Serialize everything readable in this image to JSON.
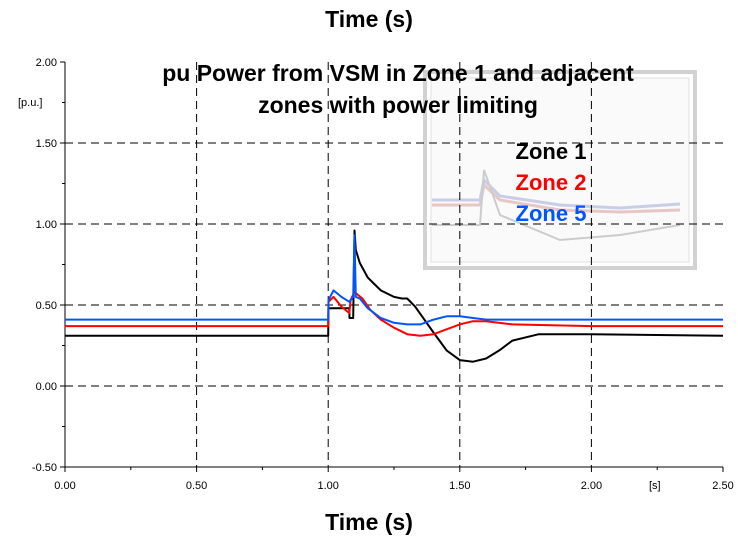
{
  "header": {
    "title": "Time (s)"
  },
  "footer": {
    "xlabel": "Time (s)"
  },
  "chart_data": {
    "type": "line",
    "title_lines": [
      "pu Power from VSM in Zone 1 and adjacent",
      "zones with power limiting"
    ],
    "ylabel": "[p.u.]",
    "xunit": "[s]",
    "xlim": [
      0,
      2.5
    ],
    "ylim": [
      -0.5,
      2.0
    ],
    "xticks": [
      0,
      0.5,
      1.0,
      1.5,
      2.0,
      2.5
    ],
    "xtick_labels": [
      "0.00",
      "0.50",
      "1.00",
      "1.50",
      "2.00",
      "2.50"
    ],
    "yticks": [
      -0.5,
      0,
      0.5,
      1.0,
      1.5,
      2.0
    ],
    "ytick_labels": [
      "-0.50",
      "0.00",
      "0.50",
      "1.00",
      "1.50",
      "2.00"
    ],
    "grid": true,
    "legend_position": "top-right",
    "series": [
      {
        "name": "Zone 1",
        "color": "#000000",
        "x": [
          0,
          1.0,
          1.001,
          1.03,
          1.05,
          1.08,
          1.081,
          1.095,
          1.1,
          1.105,
          1.12,
          1.15,
          1.2,
          1.25,
          1.28,
          1.3,
          1.33,
          1.4,
          1.45,
          1.5,
          1.55,
          1.6,
          1.65,
          1.7,
          1.8,
          2.0,
          2.5
        ],
        "y": [
          0.31,
          0.31,
          0.48,
          0.48,
          0.48,
          0.48,
          0.42,
          0.42,
          0.96,
          0.84,
          0.76,
          0.67,
          0.59,
          0.55,
          0.54,
          0.54,
          0.49,
          0.33,
          0.22,
          0.16,
          0.15,
          0.17,
          0.22,
          0.28,
          0.32,
          0.32,
          0.31
        ]
      },
      {
        "name": "Zone 2",
        "color": "#ff0000",
        "x": [
          0,
          1.0,
          1.001,
          1.02,
          1.05,
          1.08,
          1.085,
          1.1,
          1.13,
          1.16,
          1.2,
          1.25,
          1.3,
          1.35,
          1.4,
          1.45,
          1.5,
          1.55,
          1.6,
          1.7,
          2.0,
          2.5
        ],
        "y": [
          0.37,
          0.37,
          0.52,
          0.55,
          0.49,
          0.45,
          0.53,
          0.58,
          0.54,
          0.47,
          0.41,
          0.36,
          0.32,
          0.31,
          0.32,
          0.35,
          0.38,
          0.4,
          0.4,
          0.38,
          0.37,
          0.37
        ]
      },
      {
        "name": "Zone 5",
        "color": "#0055ff",
        "x": [
          0,
          1.0,
          1.001,
          1.02,
          1.05,
          1.08,
          1.095,
          1.1,
          1.105,
          1.12,
          1.15,
          1.2,
          1.25,
          1.3,
          1.35,
          1.4,
          1.45,
          1.5,
          1.55,
          1.6,
          2.0,
          2.5
        ],
        "y": [
          0.41,
          0.41,
          0.53,
          0.59,
          0.55,
          0.52,
          0.55,
          0.93,
          0.55,
          0.54,
          0.48,
          0.42,
          0.39,
          0.38,
          0.38,
          0.41,
          0.43,
          0.43,
          0.42,
          0.41,
          0.41,
          0.41
        ]
      }
    ]
  }
}
